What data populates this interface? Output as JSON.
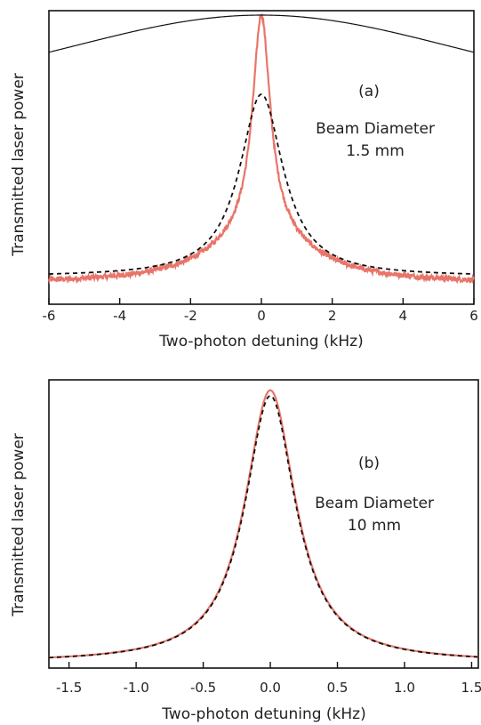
{
  "chart_data": [
    {
      "type": "line",
      "panel_label": "(a)",
      "annotation_lines": [
        "Beam Diameter",
        "1.5 mm"
      ],
      "xlabel": "Two-photon detuning (kHz)",
      "ylabel": "Transmitted laser power",
      "xlim": [
        -6,
        6
      ],
      "ylim": [
        0,
        1
      ],
      "x_ticks": [
        -6,
        -4,
        -2,
        0,
        2,
        4,
        6
      ],
      "x_tick_labels": [
        "-6",
        "-4",
        "-2",
        "0",
        "2",
        "4",
        "6"
      ],
      "y_ticks_labeled": false,
      "grid": false,
      "series": [
        {
          "style": "solid",
          "color": "#e8756a",
          "peak": 1.0,
          "baseline": 0.05,
          "half_width": 0.3,
          "wing_width": 1.6,
          "wing_amp": 0.2,
          "noisy": true
        },
        {
          "style": "dashed",
          "color": "#111111",
          "peak": 0.72,
          "baseline": 0.075,
          "half_width": 0.75
        },
        {
          "style": "thin-solid",
          "color": "#111111",
          "peak": 1.0,
          "baseline": 0.73,
          "gaussian_sigma": 5.2
        }
      ]
    },
    {
      "type": "line",
      "panel_label": "(b)",
      "annotation_lines": [
        "Beam Diameter",
        "10 mm"
      ],
      "xlabel": "Two-photon detuning (kHz)",
      "ylabel": "Transmitted laser power",
      "xlim": [
        -1.65,
        1.55
      ],
      "ylim": [
        0,
        1
      ],
      "x_ticks": [
        -1.5,
        -1.0,
        -0.5,
        0.0,
        0.5,
        1.0,
        1.5
      ],
      "x_tick_labels": [
        "-1.5",
        "-1.0",
        "-0.5",
        "0.0",
        "0.5",
        "1.0",
        "1.5"
      ],
      "y_ticks_labeled": false,
      "grid": false,
      "series": [
        {
          "style": "solid",
          "color": "#e8756a",
          "peak": 0.985,
          "baseline": 0.0,
          "half_width": 0.23,
          "noisy": false
        },
        {
          "style": "dashed",
          "color": "#111111",
          "peak": 0.965,
          "baseline": 0.0,
          "half_width": 0.23
        }
      ]
    }
  ]
}
